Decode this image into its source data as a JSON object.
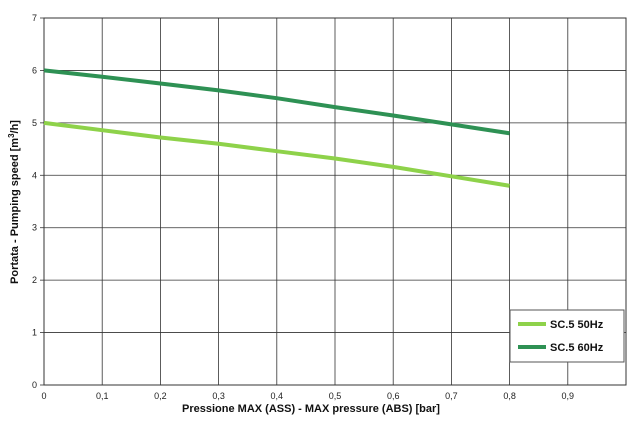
{
  "chart_data": {
    "type": "line",
    "title": "",
    "xlabel": "Pressione MAX  (ASS) - MAX pressure (ABS) [bar]",
    "ylabel_main": "Portata - Pumping speed [m",
    "ylabel_sup": "3",
    "ylabel_end": "/h]",
    "xlim": [
      0,
      1.0
    ],
    "ylim": [
      0,
      7
    ],
    "x_ticks": [
      0,
      0.1,
      0.2,
      0.3,
      0.4,
      0.5,
      0.6,
      0.7,
      0.8,
      0.9
    ],
    "x_tick_labels": [
      "0",
      "0,1",
      "0,2",
      "0,3",
      "0,4",
      "0,5",
      "0,6",
      "0,7",
      "0,8",
      "0,9"
    ],
    "y_ticks": [
      0,
      1,
      2,
      3,
      4,
      5,
      6,
      7
    ],
    "y_tick_labels": [
      "0",
      "1",
      "2",
      "3",
      "4",
      "5",
      "6",
      "7"
    ],
    "grid": true,
    "legend_position": "bottom-right",
    "series": [
      {
        "name": "SC.5 50Hz",
        "color": "#8ed24a",
        "x": [
          0,
          0.1,
          0.2,
          0.3,
          0.4,
          0.5,
          0.6,
          0.7,
          0.8
        ],
        "y": [
          5.0,
          4.86,
          4.72,
          4.6,
          4.46,
          4.32,
          4.16,
          3.98,
          3.8
        ]
      },
      {
        "name": "SC.5 60Hz",
        "color": "#2e9154",
        "x": [
          0,
          0.1,
          0.2,
          0.3,
          0.4,
          0.5,
          0.6,
          0.7,
          0.8
        ],
        "y": [
          6.0,
          5.88,
          5.75,
          5.62,
          5.47,
          5.3,
          5.14,
          4.97,
          4.8
        ]
      }
    ]
  }
}
